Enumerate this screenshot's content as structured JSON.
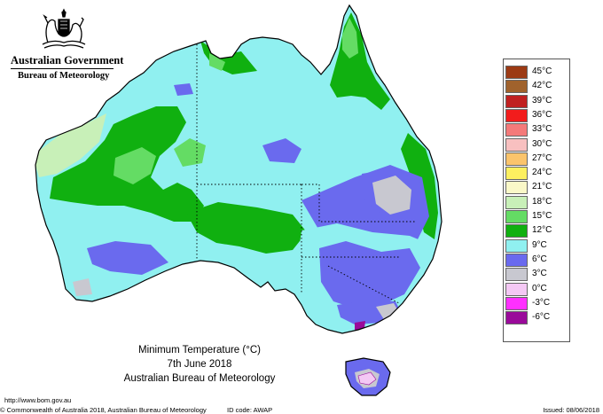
{
  "branding": {
    "government": "Australian Government",
    "agency": "Bureau of Meteorology"
  },
  "map": {
    "title": "Minimum Temperature (°C)",
    "date": "7th June 2018",
    "source": "Australian Bureau of Meteorology",
    "region": "Australia",
    "projection_note": "state boundaries shown as dotted lines"
  },
  "legend": {
    "items": [
      {
        "label": "45°C",
        "color": "#9c3a14"
      },
      {
        "label": "42°C",
        "color": "#a0622c"
      },
      {
        "label": "39°C",
        "color": "#c02020"
      },
      {
        "label": "36°C",
        "color": "#f21c1c"
      },
      {
        "label": "33°C",
        "color": "#f47a7a"
      },
      {
        "label": "30°C",
        "color": "#f8c0c0"
      },
      {
        "label": "27°C",
        "color": "#fbc46c"
      },
      {
        "label": "24°C",
        "color": "#fdf060"
      },
      {
        "label": "21°C",
        "color": "#faf8c8"
      },
      {
        "label": "18°C",
        "color": "#c8f0b8"
      },
      {
        "label": "15°C",
        "color": "#64dc64"
      },
      {
        "label": "12°C",
        "color": "#10b010"
      },
      {
        "label": "9°C",
        "color": "#90f0f0"
      },
      {
        "label": "6°C",
        "color": "#6a6aee"
      },
      {
        "label": "3°C",
        "color": "#c8c8d0"
      },
      {
        "label": "0°C",
        "color": "#f4c8f4"
      },
      {
        "label": "-3°C",
        "color": "#ff30ff"
      },
      {
        "label": "-6°C",
        "color": "#9a0a9a"
      }
    ]
  },
  "footer": {
    "url": "http://www.bom.gov.au",
    "copyright": "© Commonwealth of Australia 2018, Australian Bureau of Meteorology",
    "id_code": "ID code: AWAP",
    "issued": "Issued: 08/06/2018"
  },
  "colors": {
    "land_base": "#90f0f0",
    "warm_green": "#10b010",
    "mid_green": "#64dc64",
    "pale_green": "#c8f0b8",
    "cool_blue": "#6a6aee",
    "grey": "#c8c8d0",
    "pink": "#f4c8f4",
    "outline": "#000000"
  }
}
